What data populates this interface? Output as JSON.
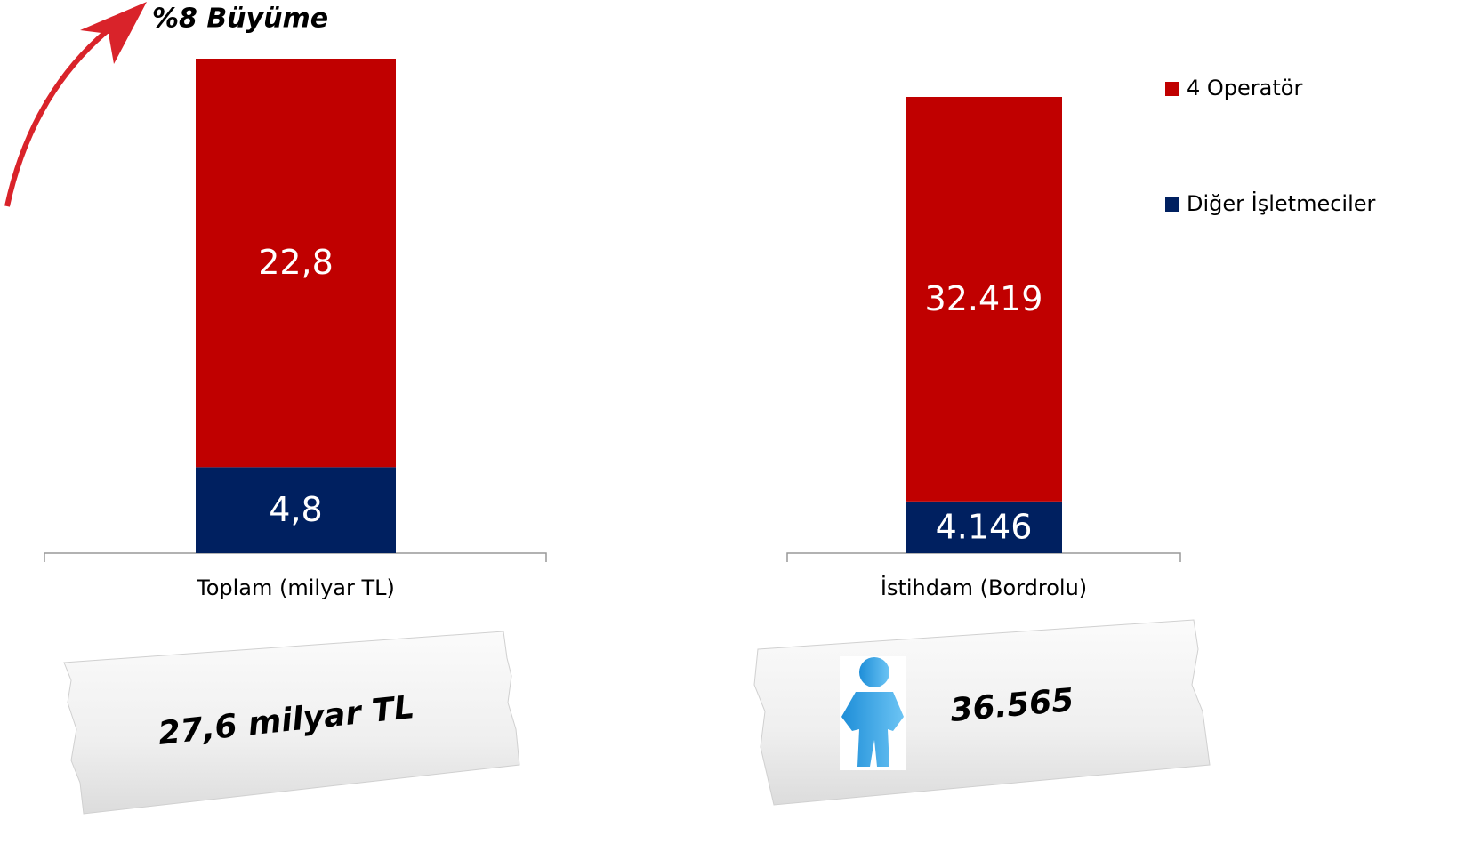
{
  "chart_data": [
    {
      "type": "bar",
      "stacked": true,
      "categories": [
        "Toplam (milyar TL)"
      ],
      "series": [
        {
          "name": "4 Operatör",
          "color": "#c00000",
          "values": [
            22.8
          ],
          "value_labels": [
            "22,8"
          ]
        },
        {
          "name": "Diğer İşletmeciler",
          "color": "#002060",
          "values": [
            4.8
          ],
          "value_labels": [
            "4,8"
          ]
        }
      ],
      "ylim": [
        0,
        27.6
      ],
      "legend": "right",
      "annotations": [
        "%8 Büyüme",
        "27,6 milyar TL"
      ]
    },
    {
      "type": "bar",
      "stacked": true,
      "categories": [
        "İstihdam (Bordrolu)"
      ],
      "series": [
        {
          "color": "#c00000",
          "values": [
            32419
          ],
          "value_labels": [
            "32.419"
          ]
        },
        {
          "color": "#002060",
          "values": [
            4146
          ],
          "value_labels": [
            "4.146"
          ]
        }
      ],
      "ylim": [
        0,
        39630
      ],
      "annotations": [
        "36.565"
      ]
    }
  ]
}
